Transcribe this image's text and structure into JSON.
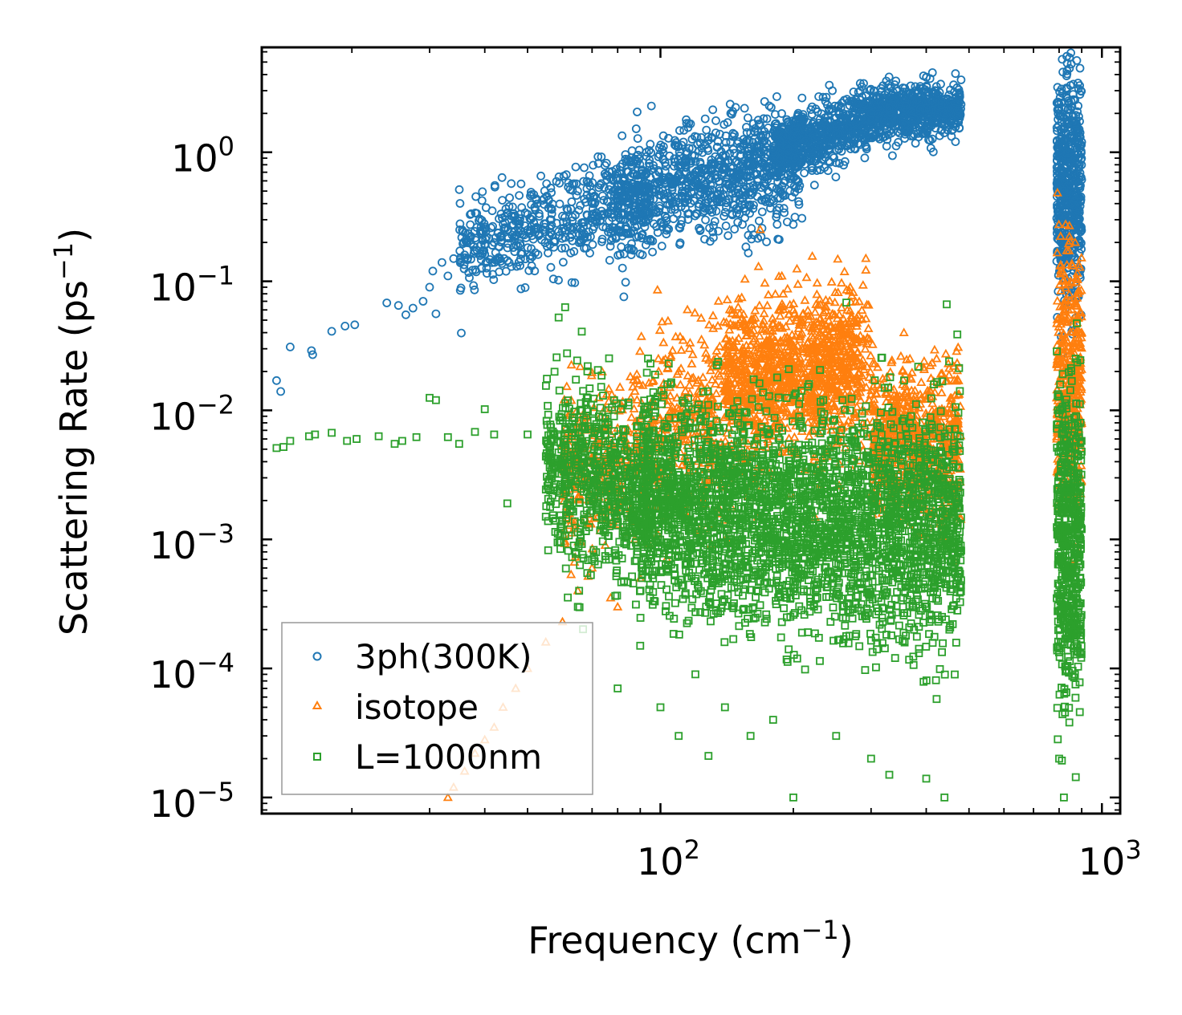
{
  "chart_data": {
    "type": "scatter",
    "xscale": "log",
    "yscale": "log",
    "xlabel": "Frequency (cm⁻¹)",
    "ylabel": "Scattering Rate (ps⁻¹)",
    "xlabel_parts": {
      "main": "Frequency (cm",
      "sup": "−1",
      "close": ")"
    },
    "ylabel_parts": {
      "main": "Scattering Rate (ps",
      "sup": "−1",
      "close": ")"
    },
    "xlim": [
      12.5,
      1100
    ],
    "ylim": [
      7.5e-06,
      6.5
    ],
    "x_ticks": [
      {
        "value": 100,
        "base": "10",
        "exp": "2"
      },
      {
        "value": 1000,
        "base": "10",
        "exp": "3"
      }
    ],
    "y_ticks": [
      {
        "value": 1,
        "base": "10",
        "exp": "0"
      },
      {
        "value": 0.1,
        "base": "10",
        "exp": "−1"
      },
      {
        "value": 0.01,
        "base": "10",
        "exp": "−2"
      },
      {
        "value": 0.001,
        "base": "10",
        "exp": "−3"
      },
      {
        "value": 0.0001,
        "base": "10",
        "exp": "−4"
      },
      {
        "value": 1e-05,
        "base": "10",
        "exp": "−5"
      }
    ],
    "legend_position": "lower-left",
    "series": [
      {
        "name": "3ph(300K)",
        "marker": "circle",
        "color": "#1f77b4",
        "sample_points": [
          [
            13.5,
            0.017
          ],
          [
            13.8,
            0.014
          ],
          [
            14.5,
            0.031
          ],
          [
            16.2,
            0.029
          ],
          [
            16.3,
            0.027
          ],
          [
            18,
            0.041
          ],
          [
            19.3,
            0.045
          ],
          [
            20.3,
            0.046
          ],
          [
            24,
            0.068
          ],
          [
            25.5,
            0.065
          ],
          [
            26.5,
            0.055
          ],
          [
            27.5,
            0.062
          ],
          [
            29,
            0.07
          ],
          [
            30,
            0.09
          ],
          [
            30.5,
            0.12
          ],
          [
            31,
            0.056
          ],
          [
            32,
            0.14
          ],
          [
            33,
            0.11
          ],
          [
            34,
            0.15
          ],
          [
            36,
            0.16
          ],
          [
            38,
            0.17
          ],
          [
            40,
            0.19
          ],
          [
            42,
            0.2
          ],
          [
            45,
            0.22
          ],
          [
            50,
            0.25
          ],
          [
            55,
            0.28
          ],
          [
            60,
            0.32
          ],
          [
            70,
            0.4
          ],
          [
            80,
            0.5
          ],
          [
            90,
            0.55
          ],
          [
            100,
            0.6
          ],
          [
            110,
            0.65
          ],
          [
            120,
            0.7
          ],
          [
            140,
            0.75
          ],
          [
            160,
            0.8
          ],
          [
            180,
            1.0
          ],
          [
            200,
            1.3
          ],
          [
            230,
            1.8
          ],
          [
            260,
            1.9
          ],
          [
            300,
            2.0
          ],
          [
            330,
            2.2
          ],
          [
            360,
            2.3
          ],
          [
            400,
            2.2
          ],
          [
            440,
            2.0
          ],
          [
            470,
            2.1
          ],
          [
            820,
            0.5
          ],
          [
            850,
            0.4
          ],
          [
            870,
            0.6
          ],
          [
            880,
            0.3
          ]
        ],
        "clusters": [
          {
            "x_range": [
              35,
              95
            ],
            "y_log_center_start": -0.78,
            "y_log_center_end": -0.3,
            "spread": 0.18,
            "count": 550
          },
          {
            "x_range": [
              80,
              210
            ],
            "y_log_center_start": -0.4,
            "y_log_center_end": -0.05,
            "spread": 0.22,
            "count": 900
          },
          {
            "x_range": [
              180,
              300
            ],
            "y_log_center_start": 0.0,
            "y_log_center_end": 0.25,
            "spread": 0.12,
            "count": 650
          },
          {
            "x_range": [
              300,
              480
            ],
            "y_log_center_start": 0.3,
            "y_log_center_end": 0.35,
            "spread": 0.1,
            "count": 650
          },
          {
            "x_range": [
              790,
              900
            ],
            "y_log_center_start": -0.3,
            "y_log_center_end": -0.3,
            "spread": 0.45,
            "count": 600
          }
        ]
      },
      {
        "name": "isotope",
        "marker": "triangle",
        "color": "#ff7f0e",
        "sample_points": [
          [
            33,
            1e-05
          ],
          [
            34,
            1.2e-05
          ],
          [
            36,
            1.6e-05
          ],
          [
            38,
            2.2e-05
          ],
          [
            40,
            2.8e-05
          ],
          [
            42,
            3.5e-05
          ],
          [
            44,
            5e-05
          ],
          [
            47,
            7e-05
          ],
          [
            50,
            0.0001
          ],
          [
            55,
            0.00016
          ],
          [
            60,
            0.00023
          ],
          [
            65,
            0.0004
          ],
          [
            70,
            0.0006
          ],
          [
            75,
            0.0009
          ],
          [
            80,
            0.0003
          ],
          [
            90,
            0.0005
          ],
          [
            100,
            0.006
          ],
          [
            110,
            0.02
          ],
          [
            120,
            0.008
          ],
          [
            140,
            0.015
          ],
          [
            160,
            0.04
          ],
          [
            180,
            0.03
          ],
          [
            200,
            0.06
          ],
          [
            230,
            0.04
          ],
          [
            260,
            0.03
          ],
          [
            280,
            0.05
          ],
          [
            330,
            0.008
          ],
          [
            360,
            0.01
          ],
          [
            400,
            0.009
          ],
          [
            440,
            0.01
          ],
          [
            470,
            0.008
          ],
          [
            820,
            0.05
          ],
          [
            850,
            0.1
          ],
          [
            870,
            0.2
          ],
          [
            880,
            0.02
          ]
        ],
        "clusters": [
          {
            "x_range": [
              60,
              300
            ],
            "y_log_center_start": -2.5,
            "y_log_center_end": -1.6,
            "spread": 0.35,
            "count": 1200
          },
          {
            "x_range": [
              140,
              280
            ],
            "y_log_center_start": -1.7,
            "y_log_center_end": -1.6,
            "spread": 0.25,
            "count": 700
          },
          {
            "x_range": [
              300,
              480
            ],
            "y_log_center_start": -2.2,
            "y_log_center_end": -2.3,
            "spread": 0.3,
            "count": 700
          },
          {
            "x_range": [
              790,
              900
            ],
            "y_log_center_start": -1.8,
            "y_log_center_end": -1.8,
            "spread": 0.5,
            "count": 400
          }
        ]
      },
      {
        "name": "L=1000nm",
        "marker": "square",
        "color": "#2ca02c",
        "sample_points": [
          [
            13.5,
            0.0051
          ],
          [
            14,
            0.0052
          ],
          [
            14.5,
            0.0058
          ],
          [
            16,
            0.0063
          ],
          [
            16.5,
            0.0065
          ],
          [
            18,
            0.0067
          ],
          [
            19.5,
            0.0058
          ],
          [
            20.5,
            0.006
          ],
          [
            23,
            0.0063
          ],
          [
            25,
            0.0055
          ],
          [
            26,
            0.0058
          ],
          [
            28,
            0.0062
          ],
          [
            30,
            0.0125
          ],
          [
            31,
            0.012
          ],
          [
            33,
            0.0062
          ],
          [
            35,
            0.0055
          ],
          [
            38,
            0.0068
          ],
          [
            40,
            0.0102
          ],
          [
            42,
            0.0065
          ],
          [
            45,
            0.0019
          ],
          [
            50,
            0.0065
          ],
          [
            55,
            0.0015
          ],
          [
            60,
            0.002
          ],
          [
            65,
            0.0003
          ],
          [
            70,
            0.0007
          ],
          [
            80,
            7e-05
          ],
          [
            90,
            0.00015
          ],
          [
            100,
            5e-05
          ],
          [
            110,
            3e-05
          ],
          [
            120,
            9e-05
          ],
          [
            140,
            5e-05
          ],
          [
            160,
            3e-05
          ],
          [
            180,
            4e-05
          ],
          [
            200,
            1e-05
          ],
          [
            250,
            3e-05
          ],
          [
            300,
            2e-05
          ],
          [
            330,
            1.5e-05
          ],
          [
            400,
            1.4e-05
          ],
          [
            440,
            1e-05
          ],
          [
            800,
            2e-05
          ],
          [
            820,
            1e-05
          ],
          [
            850,
            0.0005
          ],
          [
            880,
            0.002
          ]
        ],
        "clusters": [
          {
            "x_range": [
              55,
              95
            ],
            "y_log_center_start": -2.4,
            "y_log_center_end": -2.7,
            "spread": 0.35,
            "count": 700
          },
          {
            "x_range": [
              90,
              300
            ],
            "y_log_center_start": -2.7,
            "y_log_center_end": -2.9,
            "spread": 0.4,
            "count": 2200
          },
          {
            "x_range": [
              300,
              480
            ],
            "y_log_center_start": -2.9,
            "y_log_center_end": -2.9,
            "spread": 0.45,
            "count": 900
          },
          {
            "x_range": [
              790,
              900
            ],
            "y_log_center_start": -3.0,
            "y_log_center_end": -3.0,
            "spread": 0.6,
            "count": 550
          }
        ]
      }
    ]
  }
}
